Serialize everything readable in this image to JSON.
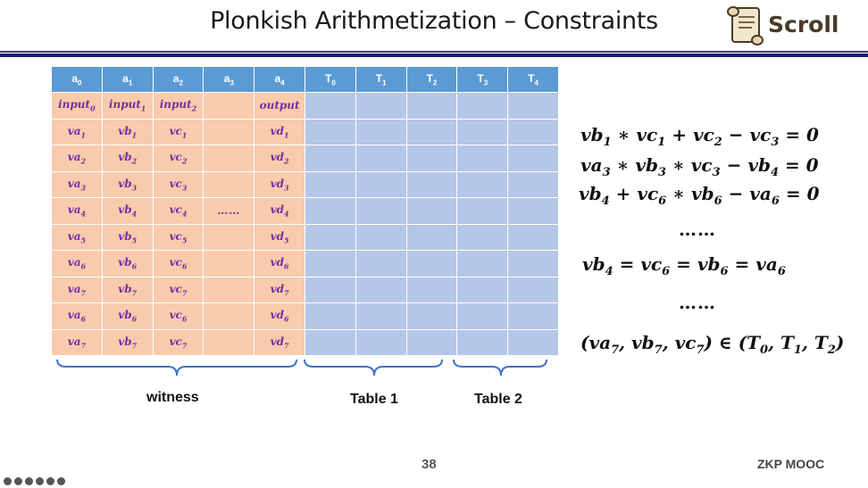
{
  "slide": {
    "title": "Plonkish Arithmetization – Constraints",
    "logo_text": "Scroll",
    "page_number": "38",
    "footer": "ZKP MOOC"
  },
  "table": {
    "headers": [
      {
        "base": "a",
        "sub": "0"
      },
      {
        "base": "a",
        "sub": "1"
      },
      {
        "base": "a",
        "sub": "2"
      },
      {
        "base": "a",
        "sub": "3"
      },
      {
        "base": "a",
        "sub": "4"
      },
      {
        "base": "T",
        "sub": "0"
      },
      {
        "base": "T",
        "sub": "1"
      },
      {
        "base": "T",
        "sub": "2"
      },
      {
        "base": "T",
        "sub": "3"
      },
      {
        "base": "T",
        "sub": "4"
      }
    ],
    "rows": [
      [
        {
          "base": "input",
          "sub": "0"
        },
        {
          "base": "input",
          "sub": "1"
        },
        {
          "base": "input",
          "sub": "2"
        },
        {
          "base": "",
          "sub": ""
        },
        {
          "base": "output",
          "sub": ""
        }
      ],
      [
        {
          "base": "va",
          "sub": "1"
        },
        {
          "base": "vb",
          "sub": "1"
        },
        {
          "base": "vc",
          "sub": "1"
        },
        {
          "base": "",
          "sub": ""
        },
        {
          "base": "vd",
          "sub": "1"
        }
      ],
      [
        {
          "base": "va",
          "sub": "2"
        },
        {
          "base": "vb",
          "sub": "2"
        },
        {
          "base": "vc",
          "sub": "2"
        },
        {
          "base": "",
          "sub": ""
        },
        {
          "base": "vd",
          "sub": "2"
        }
      ],
      [
        {
          "base": "va",
          "sub": "3"
        },
        {
          "base": "vb",
          "sub": "3"
        },
        {
          "base": "vc",
          "sub": "3"
        },
        {
          "base": "",
          "sub": ""
        },
        {
          "base": "vd",
          "sub": "3"
        }
      ],
      [
        {
          "base": "va",
          "sub": "4"
        },
        {
          "base": "vb",
          "sub": "4"
        },
        {
          "base": "vc",
          "sub": "4"
        },
        {
          "base": "……",
          "sub": ""
        },
        {
          "base": "vd",
          "sub": "4"
        }
      ],
      [
        {
          "base": "va",
          "sub": "5"
        },
        {
          "base": "vb",
          "sub": "5"
        },
        {
          "base": "vc",
          "sub": "5"
        },
        {
          "base": "",
          "sub": ""
        },
        {
          "base": "vd",
          "sub": "5"
        }
      ],
      [
        {
          "base": "va",
          "sub": "6"
        },
        {
          "base": "vb",
          "sub": "6"
        },
        {
          "base": "vc",
          "sub": "6"
        },
        {
          "base": "",
          "sub": ""
        },
        {
          "base": "vd",
          "sub": "6"
        }
      ],
      [
        {
          "base": "va",
          "sub": "7"
        },
        {
          "base": "vb",
          "sub": "7"
        },
        {
          "base": "vc",
          "sub": "7"
        },
        {
          "base": "",
          "sub": ""
        },
        {
          "base": "vd",
          "sub": "7"
        }
      ],
      [
        {
          "base": "va",
          "sub": "6"
        },
        {
          "base": "vb",
          "sub": "6"
        },
        {
          "base": "vc",
          "sub": "6"
        },
        {
          "base": "",
          "sub": ""
        },
        {
          "base": "vd",
          "sub": "6"
        }
      ],
      [
        {
          "base": "va",
          "sub": "7"
        },
        {
          "base": "vb",
          "sub": "7"
        },
        {
          "base": "vc",
          "sub": "7"
        },
        {
          "base": "",
          "sub": ""
        },
        {
          "base": "vd",
          "sub": "7"
        }
      ]
    ],
    "table_columns": 5,
    "witness_color": "#f8cbad",
    "table_color": "#b4c7e7",
    "header_color": "#5b9bd5",
    "cell_text_color": "#7030a0"
  },
  "braces": {
    "witness": "witness",
    "table1": "Table 1",
    "table2": "Table 2"
  },
  "equations": {
    "eq1": [
      [
        "vb",
        "1"
      ],
      [
        " ∗ ",
        ""
      ],
      [
        "vc",
        "1"
      ],
      [
        " + ",
        ""
      ],
      [
        "vc",
        "2"
      ],
      [
        " − ",
        ""
      ],
      [
        "vc",
        "3"
      ],
      [
        " = 0",
        ""
      ]
    ],
    "eq2": [
      [
        "va",
        "3"
      ],
      [
        " ∗ ",
        ""
      ],
      [
        "vb",
        "3"
      ],
      [
        " ∗ ",
        ""
      ],
      [
        "vc",
        "3"
      ],
      [
        " − ",
        ""
      ],
      [
        "vb",
        "4"
      ],
      [
        " = 0",
        ""
      ]
    ],
    "eq3": [
      [
        "vb",
        "4"
      ],
      [
        " + ",
        ""
      ],
      [
        "vc",
        "6"
      ],
      [
        " ∗ ",
        ""
      ],
      [
        "vb",
        "6"
      ],
      [
        " − ",
        ""
      ],
      [
        "va",
        "6"
      ],
      [
        " = 0",
        ""
      ]
    ],
    "dots1": "……",
    "eq4": [
      [
        "vb",
        "4"
      ],
      [
        " = ",
        ""
      ],
      [
        "vc",
        "6"
      ],
      [
        " = ",
        ""
      ],
      [
        "vb",
        "6"
      ],
      [
        " = ",
        ""
      ],
      [
        "va",
        "6"
      ]
    ],
    "dots2": "……",
    "eq5": [
      [
        "(",
        ""
      ],
      [
        "va",
        "7"
      ],
      [
        ", ",
        ""
      ],
      [
        "vb",
        "7"
      ],
      [
        ", ",
        ""
      ],
      [
        "vc",
        "7"
      ],
      [
        ") ∈ (",
        ""
      ],
      [
        "T",
        "0"
      ],
      [
        ", ",
        ""
      ],
      [
        "T",
        "1"
      ],
      [
        ", ",
        ""
      ],
      [
        "T",
        "2"
      ],
      [
        ")",
        ""
      ]
    ]
  }
}
